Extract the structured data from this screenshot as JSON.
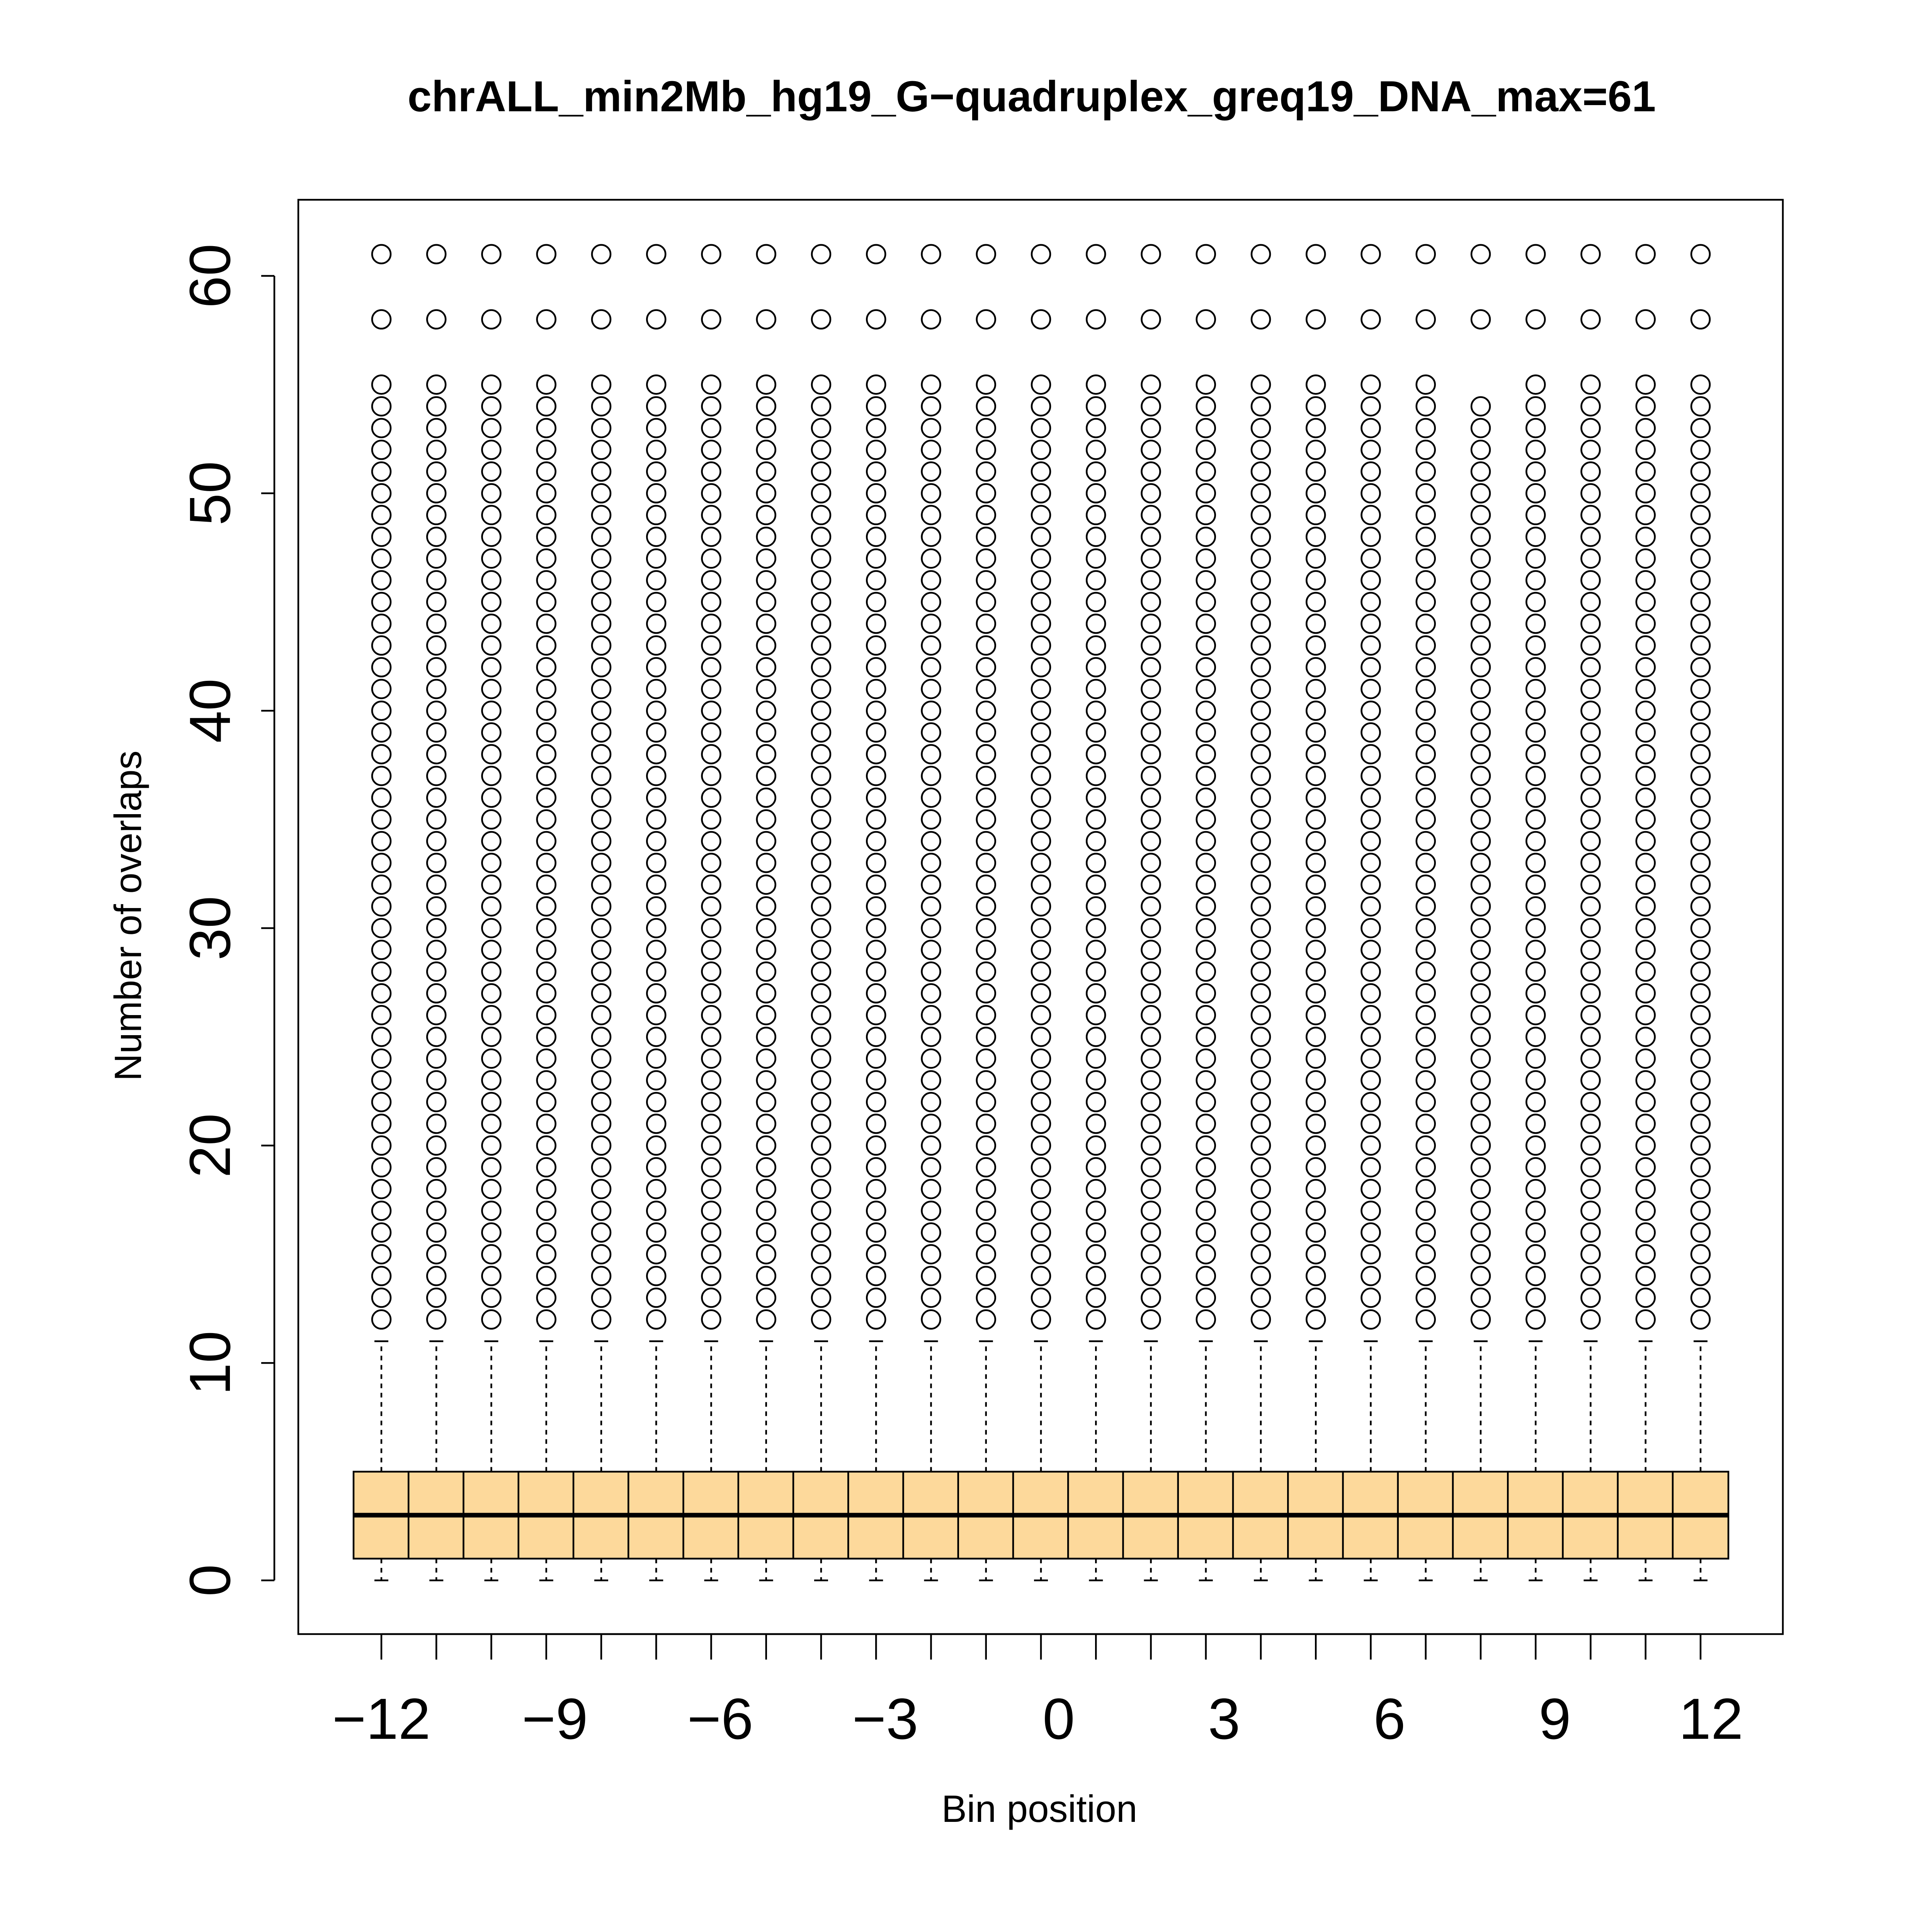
{
  "chart_data": {
    "type": "boxplot",
    "title": "chrALL_min2Mb_hg19_G−quadruplex_greq19_DNA_max=61",
    "xlabel": "Bin position",
    "ylabel": "Number of overlaps",
    "categories": [
      -12,
      -11,
      -10,
      -9,
      -8,
      -7,
      -6,
      -5,
      -4,
      -3,
      -2,
      -1,
      0,
      1,
      2,
      3,
      4,
      5,
      6,
      7,
      8,
      9,
      10,
      11,
      12
    ],
    "x_tick_labels": [
      "−12",
      "−9",
      "−6",
      "−3",
      "0",
      "3",
      "6",
      "9",
      "12"
    ],
    "x_tick_values": [
      -12,
      -9,
      -6,
      -3,
      0,
      3,
      6,
      9,
      12
    ],
    "y_tick_labels": [
      "0",
      "10",
      "20",
      "30",
      "40",
      "50",
      "60"
    ],
    "y_tick_values": [
      0,
      10,
      20,
      30,
      40,
      50,
      60
    ],
    "ylim": [
      -2.4,
      63.4
    ],
    "grid": false,
    "box_fill": "#FDD99B",
    "boxes": {
      "whisker_low": 0,
      "q1": 1,
      "median": 3,
      "q3": 5,
      "whisker_high": 11
    },
    "outliers_per_bin": {
      "default": [
        12,
        13,
        14,
        15,
        16,
        17,
        18,
        19,
        20,
        21,
        22,
        23,
        24,
        25,
        26,
        27,
        28,
        29,
        30,
        31,
        32,
        33,
        34,
        35,
        36,
        37,
        38,
        39,
        40,
        41,
        42,
        43,
        44,
        45,
        46,
        47,
        48,
        49,
        50,
        51,
        52,
        53,
        54,
        55,
        58,
        61
      ],
      "bin_8": [
        12,
        13,
        14,
        15,
        16,
        17,
        18,
        19,
        20,
        21,
        22,
        23,
        24,
        25,
        26,
        27,
        28,
        29,
        30,
        31,
        32,
        33,
        34,
        35,
        36,
        37,
        38,
        39,
        40,
        41,
        42,
        43,
        44,
        45,
        46,
        47,
        48,
        49,
        50,
        51,
        52,
        53,
        54,
        58,
        61
      ]
    }
  }
}
